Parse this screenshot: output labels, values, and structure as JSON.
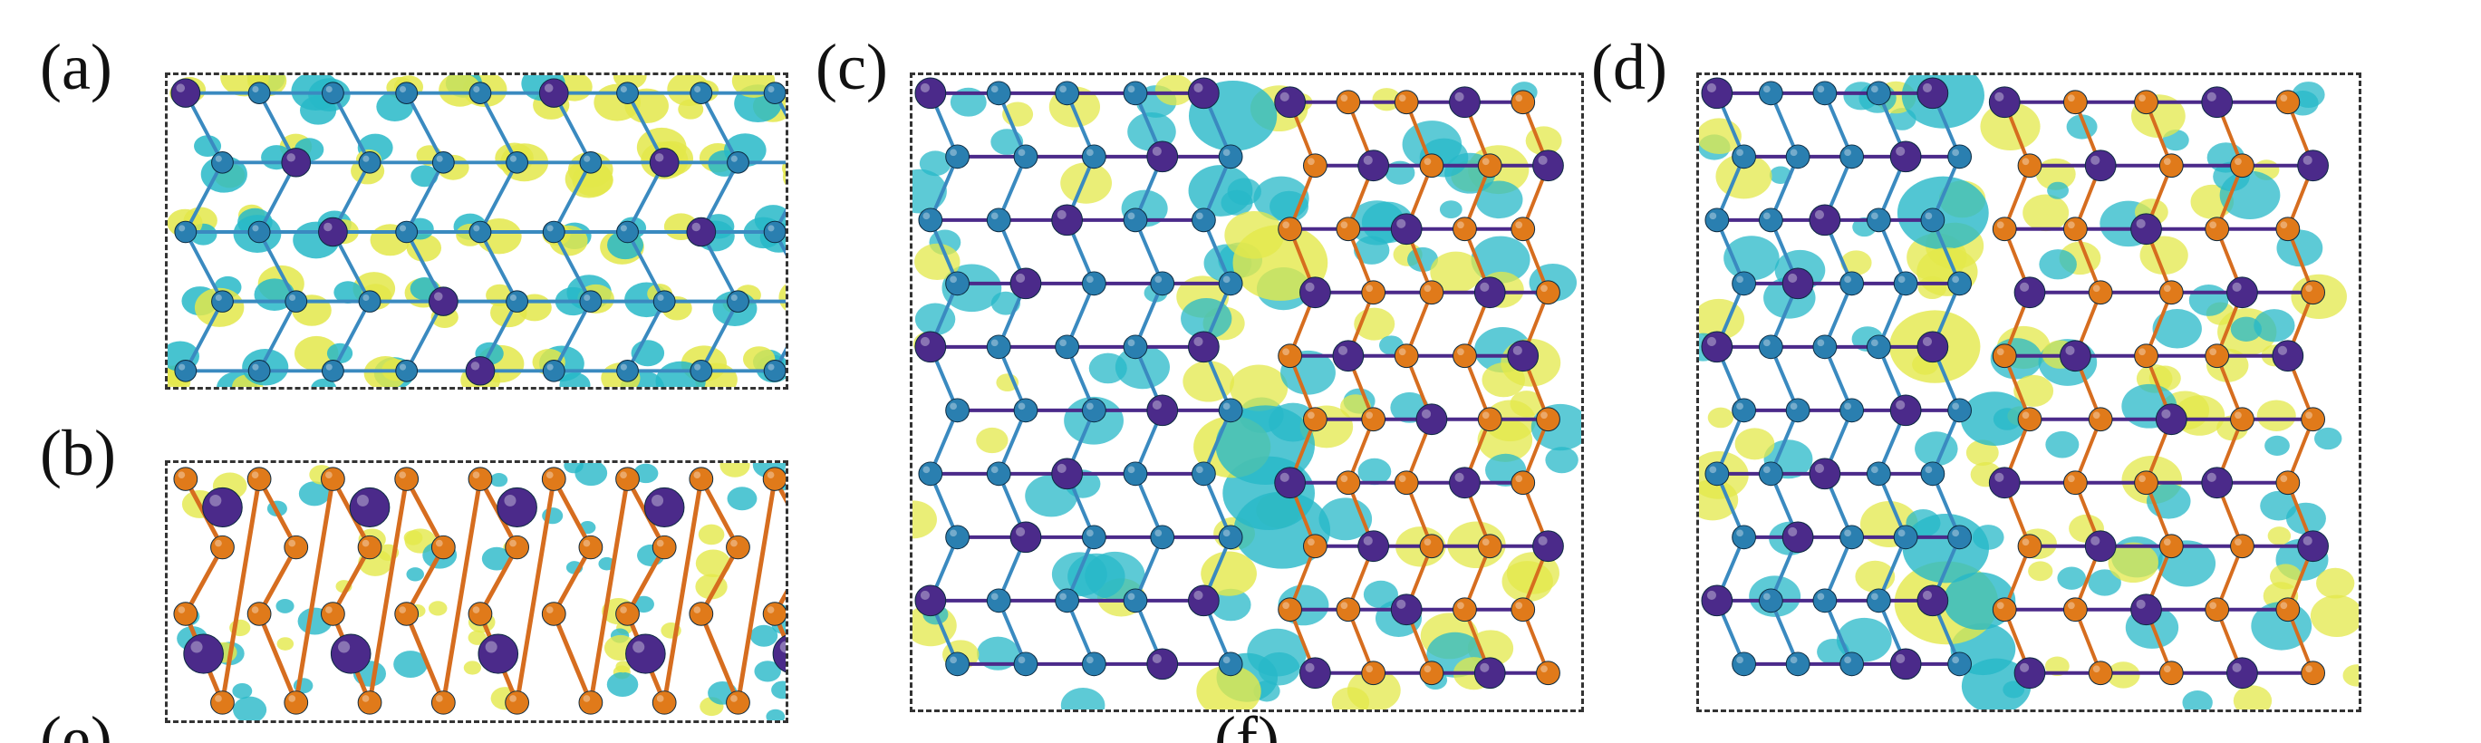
{
  "figure": {
    "panels": [
      {
        "id": "a",
        "label": "(a)"
      },
      {
        "id": "b",
        "label": "(b)"
      },
      {
        "id": "c",
        "label": "(c)"
      },
      {
        "id": "d",
        "label": "(d)"
      }
    ],
    "cut_labels": {
      "e": "(e)",
      "f": "(f)"
    }
  },
  "colors": {
    "atom_blue": "#2a7fb0",
    "atom_purple": "#4b2a8a",
    "atom_orange": "#e07a1a",
    "iso_yellow": "#e3e84a",
    "iso_cyan": "#27b8c8",
    "bond_blue": "#3a8ac0",
    "bond_orange": "#d66d1f"
  }
}
